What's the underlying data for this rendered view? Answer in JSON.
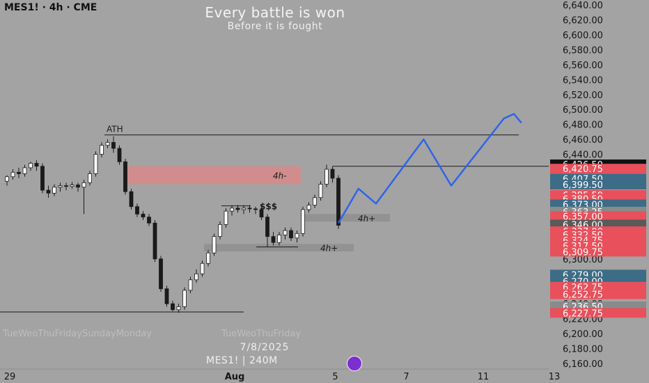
{
  "header": {
    "symbol": "MES1! · 4h · CME"
  },
  "watermark": {
    "title": "Every battle is won",
    "subtitle": "Before it is fought",
    "date": "7/8/2025",
    "tag": "MES1! | 240M",
    "ghost_text_1": "TueWeoThuFridaySundayMonday",
    "ghost_text_2": "TueWeoThuFriday"
  },
  "chart_data": {
    "type": "candlestick",
    "y_axis": {
      "min": 6150,
      "max": 6650,
      "ticks": [
        6640,
        6620,
        6600,
        6580,
        6560,
        6540,
        6520,
        6500,
        6480,
        6460,
        6440,
        6420,
        6400,
        6380,
        6360,
        6340,
        6320,
        6300,
        6280,
        6260,
        6240,
        6220,
        6200,
        6180,
        6160
      ],
      "tick_labels": [
        "6,640.00",
        "6,620.00",
        "6,600.00",
        "6,580.00",
        "6,560.00",
        "6,540.00",
        "6,520.00",
        "6,500.00",
        "6,480.00",
        "6,460.00",
        "6,440.00",
        "6,420.00",
        "6,400.00",
        "6,380.00",
        "6,360.00",
        "6,340.00",
        "6,320.00",
        "6,300.00",
        "6,280.00",
        "6,260.00",
        "6,240.00",
        "6,220.00",
        "6,200.00",
        "6,180.00",
        "6,160.00"
      ]
    },
    "x_axis": {
      "labels": [
        {
          "text": "29",
          "bar": -22
        },
        {
          "text": "Aug",
          "bar": 16
        },
        {
          "text": "5",
          "bar": 33
        },
        {
          "text": "7",
          "bar": 45
        },
        {
          "text": "11",
          "bar": 58
        },
        {
          "text": "13",
          "bar": 70
        }
      ]
    },
    "candles": [
      [
        6404,
        6410,
        6398,
        6412
      ],
      [
        6410,
        6416,
        6406,
        6420
      ],
      [
        6416,
        6414,
        6408,
        6422
      ],
      [
        6414,
        6422,
        6410,
        6426
      ],
      [
        6422,
        6428,
        6418,
        6430
      ],
      [
        6428,
        6424,
        6418,
        6432
      ],
      [
        6424,
        6392,
        6388,
        6428
      ],
      [
        6392,
        6388,
        6382,
        6398
      ],
      [
        6388,
        6396,
        6384,
        6400
      ],
      [
        6396,
        6398,
        6390,
        6402
      ],
      [
        6398,
        6397,
        6392,
        6402
      ],
      [
        6397,
        6399,
        6394,
        6403
      ],
      [
        6399,
        6396,
        6390,
        6402
      ],
      [
        6396,
        6402,
        6360,
        6406
      ],
      [
        6402,
        6414,
        6398,
        6418
      ],
      [
        6414,
        6440,
        6410,
        6444
      ],
      [
        6440,
        6452,
        6436,
        6456
      ],
      [
        6452,
        6456,
        6448,
        6460
      ],
      [
        6456,
        6448,
        6442,
        6464
      ],
      [
        6448,
        6430,
        6426,
        6452
      ],
      [
        6430,
        6390,
        6386,
        6434
      ],
      [
        6390,
        6370,
        6366,
        6394
      ],
      [
        6370,
        6360,
        6356,
        6374
      ],
      [
        6360,
        6356,
        6352,
        6364
      ],
      [
        6356,
        6348,
        6344,
        6360
      ],
      [
        6348,
        6300,
        6296,
        6352
      ],
      [
        6300,
        6260,
        6256,
        6304
      ],
      [
        6260,
        6240,
        6236,
        6264
      ],
      [
        6240,
        6232,
        6230,
        6244
      ],
      [
        6232,
        6236,
        6228,
        6240
      ],
      [
        6236,
        6258,
        6232,
        6262
      ],
      [
        6258,
        6272,
        6254,
        6276
      ],
      [
        6272,
        6280,
        6268,
        6286
      ],
      [
        6280,
        6294,
        6276,
        6298
      ],
      [
        6294,
        6308,
        6290,
        6312
      ],
      [
        6308,
        6330,
        6304,
        6334
      ],
      [
        6330,
        6346,
        6326,
        6350
      ],
      [
        6346,
        6364,
        6342,
        6368
      ],
      [
        6364,
        6368,
        6358,
        6372
      ],
      [
        6368,
        6366,
        6362,
        6372
      ],
      [
        6366,
        6368,
        6360,
        6372
      ],
      [
        6368,
        6367,
        6362,
        6372
      ],
      [
        6367,
        6366,
        6360,
        6370
      ],
      [
        6366,
        6356,
        6352,
        6370
      ],
      [
        6356,
        6330,
        6316,
        6360
      ],
      [
        6330,
        6322,
        6318,
        6336
      ],
      [
        6322,
        6332,
        6318,
        6336
      ],
      [
        6332,
        6338,
        6326,
        6342
      ],
      [
        6338,
        6328,
        6324,
        6342
      ],
      [
        6328,
        6334,
        6322,
        6338
      ],
      [
        6334,
        6366,
        6330,
        6370
      ],
      [
        6366,
        6372,
        6362,
        6376
      ],
      [
        6372,
        6382,
        6368,
        6386
      ],
      [
        6382,
        6400,
        6378,
        6404
      ],
      [
        6400,
        6420,
        6396,
        6426
      ],
      [
        6420,
        6408,
        6402,
        6424
      ],
      [
        6408,
        6345,
        6340,
        6412
      ]
    ],
    "annotations": {
      "ath": {
        "label": "ATH",
        "price": 6466
      },
      "hline_current": {
        "price": 6424
      },
      "hline_low": {
        "price": 6229
      },
      "zones": [
        {
          "label": "4h-",
          "top": 6424,
          "bottom": 6400,
          "color": "#d98a8a"
        },
        {
          "label": "4h+",
          "top": 6360,
          "bottom": 6350,
          "color": "#8f8f8f"
        },
        {
          "label": "4h+",
          "top": 6320,
          "bottom": 6310,
          "color": "#8f8f8f"
        }
      ],
      "dollar_label": {
        "text": "$$$",
        "price": 6370
      },
      "projection": {
        "color": "#2f64e8",
        "points": [
          [
            0,
            6348
          ],
          [
            8,
            6394
          ],
          [
            15,
            6374
          ],
          [
            34,
            6460
          ],
          [
            45,
            6398
          ],
          [
            66,
            6488
          ],
          [
            70,
            6494
          ],
          [
            73,
            6482
          ]
        ]
      }
    },
    "price_labels": [
      {
        "text": "6,426.50",
        "price": 6426.5,
        "color": "#111111"
      },
      {
        "text": "6,420.75",
        "price": 6420.75,
        "color": "#e8505b"
      },
      {
        "text": "6,407.50",
        "price": 6407.5,
        "color": "#3d6c86"
      },
      {
        "text": "6,399.50",
        "price": 6399.5,
        "color": "#3d6c86"
      },
      {
        "text": "6,385.50",
        "price": 6385.5,
        "color": "#e8505b"
      },
      {
        "text": "6,380.50",
        "price": 6380.5,
        "color": "#e8505b"
      },
      {
        "text": "6,373.00",
        "price": 6373.0,
        "color": "#3d6c86"
      },
      {
        "text": "6,363.25",
        "price": 6363.25,
        "color": "#8a8a8a"
      },
      {
        "text": "6,357.00",
        "price": 6357.0,
        "color": "#e8505b"
      },
      {
        "text": "6,346.00",
        "price": 6346.0,
        "color": "#5a5a5a"
      },
      {
        "text": "6,337.00",
        "price": 6337.0,
        "color": "#e8505b"
      },
      {
        "text": "6,332.50",
        "price": 6332.5,
        "color": "#e8505b"
      },
      {
        "text": "6,324.75",
        "price": 6324.75,
        "color": "#e8505b"
      },
      {
        "text": "6,317.50",
        "price": 6317.5,
        "color": "#e8505b"
      },
      {
        "text": "6,309.75",
        "price": 6309.75,
        "color": "#e8505b"
      },
      {
        "text": "6,279.00",
        "price": 6279.0,
        "color": "#3d6c86"
      },
      {
        "text": "6,270.00",
        "price": 6270.0,
        "color": "#3d6c86"
      },
      {
        "text": "6,262.75",
        "price": 6262.75,
        "color": "#e8505b"
      },
      {
        "text": "6,252.75",
        "price": 6252.75,
        "color": "#e8505b"
      },
      {
        "text": "6,236.50",
        "price": 6236.5,
        "color": "#8a8a8a"
      },
      {
        "text": "6,227.75",
        "price": 6227.75,
        "color": "#e8505b"
      }
    ],
    "colors": {
      "up": "#ffffff",
      "down": "#1a1a1a",
      "wick": "#1a1a1a",
      "background": "#a3a3a3"
    }
  }
}
